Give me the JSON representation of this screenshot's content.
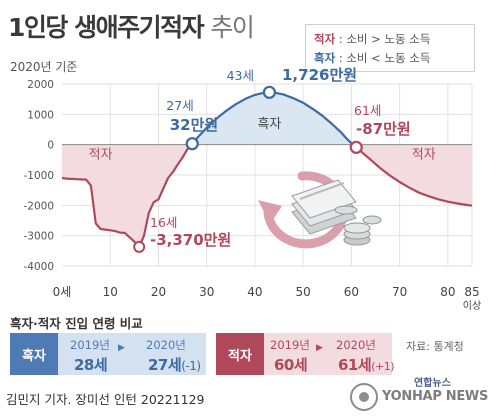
{
  "title": {
    "main": "1인당 생애주기적자",
    "sub": "추이"
  },
  "basis": "2020년 기준",
  "legend": {
    "deficit": {
      "key": "적자",
      "def": " : 소비 > 노동 소득"
    },
    "surplus": {
      "key": "흑자",
      "def": " : 소비 < 노동 소득"
    }
  },
  "chart_data": {
    "type": "line",
    "title": "1인당 생애주기적자 추이",
    "ylabel": "",
    "xlabel": "",
    "unit": "만원",
    "x_tick_labels": [
      "0세",
      "10",
      "20",
      "30",
      "40",
      "50",
      "60",
      "70",
      "80",
      "85"
    ],
    "x_last_suffix": "이상",
    "x_ticks": [
      0,
      10,
      20,
      30,
      40,
      50,
      60,
      70,
      80,
      85
    ],
    "y_ticks": [
      2000,
      1000,
      0,
      -1000,
      -2000,
      -3000,
      -4000
    ],
    "y_tick_labels": [
      "2000",
      "1000",
      "0",
      "-1000",
      "-2000",
      "-3000",
      "-4000"
    ],
    "xlim": [
      0,
      85
    ],
    "ylim": [
      -4000,
      2000
    ],
    "points": [
      [
        0,
        -1100
      ],
      [
        1,
        -1120
      ],
      [
        3,
        -1140
      ],
      [
        5,
        -1150
      ],
      [
        6,
        -1350
      ],
      [
        7,
        -2600
      ],
      [
        8,
        -2780
      ],
      [
        9,
        -2800
      ],
      [
        11,
        -2850
      ],
      [
        12,
        -2900
      ],
      [
        13,
        -2910
      ],
      [
        14,
        -3050
      ],
      [
        15,
        -3200
      ],
      [
        16,
        -3370
      ],
      [
        17,
        -3000
      ],
      [
        18,
        -2250
      ],
      [
        19,
        -1900
      ],
      [
        20,
        -1800
      ],
      [
        21,
        -1450
      ],
      [
        22,
        -1100
      ],
      [
        23,
        -900
      ],
      [
        24,
        -650
      ],
      [
        25,
        -420
      ],
      [
        26,
        -150
      ],
      [
        27,
        32
      ],
      [
        28,
        220
      ],
      [
        30,
        560
      ],
      [
        32,
        860
      ],
      [
        34,
        1110
      ],
      [
        36,
        1330
      ],
      [
        38,
        1510
      ],
      [
        40,
        1640
      ],
      [
        42,
        1715
      ],
      [
        43,
        1726
      ],
      [
        44,
        1715
      ],
      [
        46,
        1650
      ],
      [
        48,
        1530
      ],
      [
        50,
        1380
      ],
      [
        52,
        1180
      ],
      [
        54,
        950
      ],
      [
        56,
        680
      ],
      [
        58,
        380
      ],
      [
        59,
        200
      ],
      [
        60,
        50
      ],
      [
        61,
        -87
      ],
      [
        62,
        -230
      ],
      [
        64,
        -500
      ],
      [
        66,
        -780
      ],
      [
        68,
        -1020
      ],
      [
        70,
        -1230
      ],
      [
        72,
        -1420
      ],
      [
        74,
        -1580
      ],
      [
        76,
        -1700
      ],
      [
        78,
        -1800
      ],
      [
        80,
        -1880
      ],
      [
        82,
        -1940
      ],
      [
        84,
        -1990
      ],
      [
        85,
        -2010
      ]
    ],
    "region_labels": [
      {
        "text": "적자",
        "x": 8,
        "y": -450
      },
      {
        "text": "흑자",
        "x": 43,
        "y": 550
      },
      {
        "text": "적자",
        "x": 75,
        "y": -450
      }
    ],
    "annotations": [
      {
        "age": "16세",
        "value": "-3,370만원",
        "x": 16,
        "y": -3370
      },
      {
        "age": "27세",
        "value": "32만원",
        "x": 27,
        "y": 32
      },
      {
        "age": "43세",
        "value": "1,726만원",
        "x": 43,
        "y": 1726
      },
      {
        "age": "61세",
        "value": "-87만원",
        "x": 61,
        "y": -87
      }
    ],
    "colors": {
      "line_deficit": "#b0485b",
      "line_surplus": "#3d6aa1",
      "fill_deficit": "#f3dcdf",
      "fill_surplus": "#dae6f2",
      "grid": "#e2e2e2"
    }
  },
  "comparison": {
    "title": "흑자·적자 진입 연령 비교",
    "surplus": {
      "label": "흑자",
      "year1": "2019년",
      "age1": "28세",
      "year2": "2020년",
      "age2": "27세",
      "change2": "(-1)",
      "color": "#4e7bb5",
      "bg": "#d3e1f1"
    },
    "deficit": {
      "label": "적자",
      "year1": "2019년",
      "age1": "60세",
      "year2": "2020년",
      "age2": "61세",
      "change2": "(+1)",
      "color": "#b0485b",
      "bg": "#f3dcdf"
    }
  },
  "source": "자료: 통계청",
  "credit": "김민지 기자. 장미선 인턴  20221129",
  "watermark": {
    "small": "연합뉴스",
    "text": "YONHAP NEWS"
  }
}
